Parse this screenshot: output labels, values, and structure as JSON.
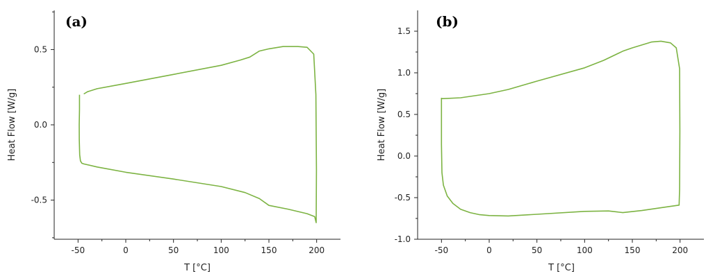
{
  "chart_data": [
    {
      "type": "line",
      "panel_label": "(a)",
      "xlabel": "T [°C]",
      "ylabel": "Heat Flow [W/g]",
      "xlim": [
        -75,
        225
      ],
      "ylim": [
        -0.76,
        0.76
      ],
      "xticks": [
        -50,
        0,
        50,
        100,
        150,
        200
      ],
      "xtick_labels": [
        "-50",
        "0",
        "50",
        "100",
        "150",
        "200"
      ],
      "yticks": [
        -0.5,
        0.0,
        0.5
      ],
      "ytick_labels": [
        "-0.5",
        "0.0",
        "0.5"
      ],
      "color": "#7cb342",
      "series": [
        {
          "x": [
            -48.5,
            -48.5,
            -48.8,
            -48.7,
            -48.3,
            -47.5,
            -46,
            -44,
            -30,
            0,
            50,
            100,
            125,
            140,
            150,
            170,
            190,
            198,
            199.5,
            199.8,
            199.2,
            197,
            190,
            180,
            165,
            150,
            140,
            130,
            120,
            100,
            50,
            0,
            -30,
            -40,
            -44
          ],
          "y": [
            0.2,
            0.1,
            0.0,
            -0.1,
            -0.2,
            -0.24,
            -0.255,
            -0.26,
            -0.28,
            -0.315,
            -0.36,
            -0.41,
            -0.45,
            -0.49,
            -0.535,
            -0.56,
            -0.59,
            -0.61,
            -0.65,
            -0.3,
            0.2,
            0.47,
            0.515,
            0.52,
            0.52,
            0.505,
            0.49,
            0.45,
            0.43,
            0.395,
            0.335,
            0.275,
            0.24,
            0.22,
            0.205
          ]
        }
      ]
    },
    {
      "type": "line",
      "panel_label": "(b)",
      "xlabel": "T [°C]",
      "ylabel": "Heat Flow [W/g]",
      "xlim": [
        -75,
        225
      ],
      "ylim": [
        -1.0,
        1.75
      ],
      "xticks": [
        -50,
        0,
        50,
        100,
        150,
        200
      ],
      "xtick_labels": [
        "-50",
        "0",
        "50",
        "100",
        "150",
        "200"
      ],
      "yticks": [
        -1.0,
        -0.5,
        0.0,
        0.5,
        1.0,
        1.5
      ],
      "ytick_labels": [
        "-1.0",
        "-0.5",
        "0.0",
        "0.5",
        "1.0",
        "1.5"
      ],
      "color": "#7cb342",
      "series": [
        {
          "x": [
            -50,
            -50,
            -49.5,
            -48,
            -44,
            -38,
            -30,
            -20,
            -10,
            0,
            20,
            50,
            100,
            125,
            140,
            160,
            190,
            199,
            199.5,
            199.8,
            199.5,
            196,
            190,
            180,
            170,
            150,
            140,
            120,
            100,
            50,
            20,
            0,
            -30,
            -48,
            -49.5
          ],
          "y": [
            0.7,
            0.14,
            -0.2,
            -0.35,
            -0.48,
            -0.57,
            -0.64,
            -0.68,
            -0.705,
            -0.715,
            -0.72,
            -0.7,
            -0.665,
            -0.66,
            -0.68,
            -0.655,
            -0.605,
            -0.59,
            -0.4,
            0.3,
            1.05,
            1.3,
            1.36,
            1.38,
            1.37,
            1.3,
            1.26,
            1.15,
            1.06,
            0.9,
            0.8,
            0.75,
            0.7,
            0.69,
            0.69
          ]
        }
      ]
    }
  ]
}
